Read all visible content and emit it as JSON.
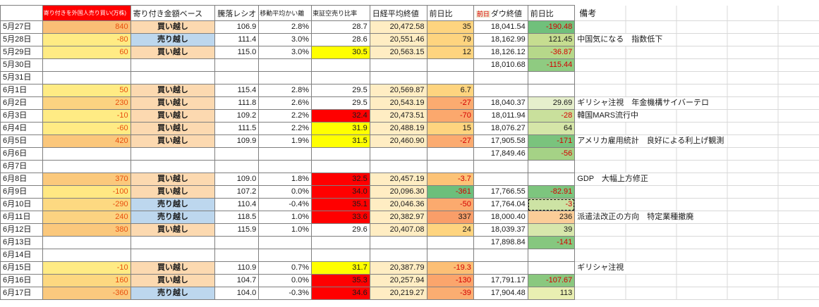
{
  "colors": {
    "header-flow-bg": "#ff0000",
    "header-flow-text": "#ffffff",
    "buy-bg": "#fcd9b0",
    "sell-bg": "#bdd7ee",
    "nikkei-close-bg": "#ffedc3",
    "flow-text": "#e8500f",
    "negative-text": "#d40000",
    "prev-label-text": "#e00000",
    "prev-label-bg": "#efe9d2",
    "border": "#7f7f7f",
    "gridline": "#d8d8d8",
    "highlight-yellow": "#ffff00",
    "highlight-red": "#ff0000"
  },
  "headers": {
    "flow": "寄り付きを外国人売り買い(万株)",
    "basis": "寄り付き金額ベース",
    "ratio": "騰落レシオ",
    "ma_dev": "移動平均かい離",
    "short_ratio": "東証空売り比率",
    "nikkei_close": "日経平均終値",
    "nikkei_diff": "前日比",
    "prev_label": "前日",
    "dow_close": "ダウ終値",
    "dow_diff": "前日比",
    "remark": "備考"
  },
  "rows": [
    {
      "date": "5月27日",
      "flow": "840",
      "flow_bg": "#fabf76",
      "basis": "買い越し",
      "ratio": "106.9",
      "ma_dev": "2.8%",
      "short": "28.7",
      "short_bg": "",
      "nikkei": "20,472.58",
      "ndiff": "35",
      "ndiff_bg": "#fed47f",
      "dow": "18,041.54",
      "ddiff": "-190.48",
      "ddiff_bg": "#70c07b",
      "remark": "",
      "selected": ""
    },
    {
      "date": "5月28日",
      "flow": "-80",
      "flow_bg": "#ffeb84",
      "basis": "売り越し",
      "ratio": "111.4",
      "ma_dev": "3.0%",
      "short": "28.6",
      "short_bg": "",
      "nikkei": "20,551.46",
      "ndiff": "79",
      "ndiff_bg": "#fed47f",
      "dow": "18,162.99",
      "ddiff": "121.45",
      "ddiff_bg": "#c6dd90",
      "remark": "中国気になる　指数低下",
      "selected": ""
    },
    {
      "date": "5月29日",
      "flow": "60",
      "flow_bg": "#ffeb84",
      "basis": "買い越し",
      "ratio": "115.0",
      "ma_dev": "3.0%",
      "short": "30.5",
      "short_bg": "#ffff00",
      "nikkei": "20,563.15",
      "ndiff": "12",
      "ndiff_bg": "#fed47f",
      "dow": "18,126.12",
      "ddiff": "-36.87",
      "ddiff_bg": "#b6d88a",
      "remark": "",
      "selected": ""
    },
    {
      "date": "5月30日",
      "flow": "",
      "flow_bg": "",
      "basis": "",
      "ratio": "",
      "ma_dev": "",
      "short": "",
      "short_bg": "",
      "nikkei": "",
      "ndiff": "",
      "ndiff_bg": "",
      "dow": "18,010.68",
      "ddiff": "-115.44",
      "ddiff_bg": "#8fcb81",
      "remark": "",
      "selected": ""
    },
    {
      "date": "5月31日",
      "flow": "",
      "flow_bg": "",
      "basis": "",
      "ratio": "",
      "ma_dev": "",
      "short": "",
      "short_bg": "",
      "nikkei": "",
      "ndiff": "",
      "ndiff_bg": "",
      "dow": "",
      "ddiff": "",
      "ddiff_bg": "",
      "remark": "",
      "selected": ""
    },
    {
      "date": "6月1日",
      "flow": "50",
      "flow_bg": "#ffeb84",
      "basis": "買い越し",
      "ratio": "115.4",
      "ma_dev": "2.8%",
      "short": "29.5",
      "short_bg": "",
      "nikkei": "20,569.87",
      "ndiff": "6.7",
      "ndiff_bg": "#fed47f",
      "dow": "",
      "ddiff": "",
      "ddiff_bg": "",
      "remark": "",
      "selected": ""
    },
    {
      "date": "6月2日",
      "flow": "230",
      "flow_bg": "#fcd381",
      "basis": "買い越し",
      "ratio": "111.8",
      "ma_dev": "2.6%",
      "short": "29.5",
      "short_bg": "",
      "nikkei": "20,543.19",
      "ndiff": "-27",
      "ndiff_bg": "#fbab70",
      "dow": "18,040.37",
      "ddiff": "29.69",
      "ddiff_bg": "#e6efcc",
      "remark": "ギリシャ注視　年金機構サイバーテロ",
      "selected": ""
    },
    {
      "date": "6月3日",
      "flow": "-10",
      "flow_bg": "#ffeb84",
      "basis": "買い越し",
      "ratio": "109.2",
      "ma_dev": "2.2%",
      "short": "32.4",
      "short_bg": "#ff0000",
      "nikkei": "20,473.51",
      "ndiff": "-70",
      "ndiff_bg": "#fba86d",
      "dow": "18,011.94",
      "ddiff": "-28",
      "ddiff_bg": "#c9e09c",
      "remark": "韓国MARS流行中",
      "selected": ""
    },
    {
      "date": "6月4日",
      "flow": "-60",
      "flow_bg": "#ffeb84",
      "basis": "買い越し",
      "ratio": "111.5",
      "ma_dev": "2.2%",
      "short": "31.9",
      "short_bg": "#ffff00",
      "nikkei": "20,488.19",
      "ndiff": "15",
      "ndiff_bg": "#fed47f",
      "dow": "18,076.27",
      "ddiff": "64",
      "ddiff_bg": "#d5e6a8",
      "remark": "",
      "selected": ""
    },
    {
      "date": "6月5日",
      "flow": "420",
      "flow_bg": "#fbc77b",
      "basis": "買い越し",
      "ratio": "109.9",
      "ma_dev": "1.9%",
      "short": "31.5",
      "short_bg": "#ffff00",
      "nikkei": "20,460.90",
      "ndiff": "-27",
      "ndiff_bg": "#fbab70",
      "dow": "17,905.58",
      "ddiff": "-171",
      "ddiff_bg": "#7ac37d",
      "remark": "アメリカ雇用統計　良好による利上げ観測",
      "selected": ""
    },
    {
      "date": "6月6日",
      "flow": "",
      "flow_bg": "",
      "basis": "",
      "ratio": "",
      "ma_dev": "",
      "short": "",
      "short_bg": "",
      "nikkei": "",
      "ndiff": "",
      "ndiff_bg": "",
      "dow": "17,849.46",
      "ddiff": "-56",
      "ddiff_bg": "#a5d286",
      "remark": "",
      "selected": ""
    },
    {
      "date": "6月7日",
      "flow": "",
      "flow_bg": "",
      "basis": "",
      "ratio": "",
      "ma_dev": "",
      "short": "",
      "short_bg": "",
      "nikkei": "",
      "ndiff": "",
      "ndiff_bg": "",
      "dow": "",
      "ddiff": "",
      "ddiff_bg": "",
      "remark": "",
      "selected": ""
    },
    {
      "date": "6月8日",
      "flow": "370",
      "flow_bg": "#fbc97c",
      "basis": "買い越し",
      "ratio": "109.0",
      "ma_dev": "1.8%",
      "short": "32.5",
      "short_bg": "#ff0000",
      "nikkei": "20,457.19",
      "ndiff": "-3.7",
      "ndiff_bg": "#fcc377",
      "dow": "",
      "ddiff": "",
      "ddiff_bg": "",
      "remark": "GDP　大幅上方修正",
      "selected": ""
    },
    {
      "date": "6月9日",
      "flow": "-100",
      "flow_bg": "#ffe883",
      "basis": "買い越し",
      "ratio": "107.2",
      "ma_dev": "0.0%",
      "short": "34.0",
      "short_bg": "#ff0000",
      "nikkei": "20,096.30",
      "ndiff": "-361",
      "ndiff_bg": "#6cbf7b",
      "dow": "17,766.55",
      "ddiff": "-82.91",
      "ddiff_bg": "#7dc57e",
      "remark": "",
      "selected": ""
    },
    {
      "date": "6月10日",
      "flow": "-290",
      "flow_bg": "#fdd981",
      "basis": "売り越し",
      "ratio": "110.4",
      "ma_dev": "-0.4%",
      "short": "35.1",
      "short_bg": "#ff0000",
      "nikkei": "20,046.36",
      "ndiff": "-50",
      "ndiff_bg": "#fbaa6e",
      "dow": "17,764.04",
      "ddiff": "-3",
      "ddiff_bg": "#cde3a4",
      "remark": "",
      "selected": "ddiff"
    },
    {
      "date": "6月11日",
      "flow": "240",
      "flow_bg": "#fcd381",
      "basis": "売り越し",
      "ratio": "118.5",
      "ma_dev": "1.0%",
      "short": "33.6",
      "short_bg": "#ff0000",
      "nikkei": "20,382.97",
      "ndiff": "337",
      "ndiff_bg": "#f99e69",
      "dow": "18,000.40",
      "ddiff": "236",
      "ddiff_bg": "#fbcd98",
      "remark": "派遣法改正の方向　特定業種撤廃",
      "selected": ""
    },
    {
      "date": "6月12日",
      "flow": "380",
      "flow_bg": "#fbc87c",
      "basis": "買い越し",
      "ratio": "115.9",
      "ma_dev": "1.0%",
      "short": "29.6",
      "short_bg": "",
      "nikkei": "20,407.08",
      "ndiff": "24",
      "ndiff_bg": "#fed47f",
      "dow": "18,039.37",
      "ddiff": "39",
      "ddiff_bg": "#d7e7ac",
      "remark": "",
      "selected": ""
    },
    {
      "date": "6月13日",
      "flow": "",
      "flow_bg": "",
      "basis": "",
      "ratio": "",
      "ma_dev": "",
      "short": "",
      "short_bg": "",
      "nikkei": "",
      "ndiff": "",
      "ndiff_bg": "",
      "dow": "17,898.84",
      "ddiff": "-141",
      "ddiff_bg": "#86c77f",
      "remark": "",
      "selected": ""
    },
    {
      "date": "6月14日",
      "flow": "",
      "flow_bg": "",
      "basis": "",
      "ratio": "",
      "ma_dev": "",
      "short": "",
      "short_bg": "",
      "nikkei": "",
      "ndiff": "",
      "ndiff_bg": "",
      "dow": "",
      "ddiff": "",
      "ddiff_bg": "",
      "remark": "",
      "selected": ""
    },
    {
      "date": "6月15日",
      "flow": "-10",
      "flow_bg": "#ffeb84",
      "basis": "買い越し",
      "ratio": "110.9",
      "ma_dev": "0.7%",
      "short": "31.7",
      "short_bg": "#ffff00",
      "nikkei": "20,387.79",
      "ndiff": "-19.3",
      "ndiff_bg": "#fcbf75",
      "dow": "",
      "ddiff": "",
      "ddiff_bg": "",
      "remark": "ギリシャ注視",
      "selected": ""
    },
    {
      "date": "6月16日",
      "flow": "160",
      "flow_bg": "#fdd880",
      "basis": "買い越し",
      "ratio": "104.7",
      "ma_dev": "0.0%",
      "short": "35.3",
      "short_bg": "#ff0000",
      "nikkei": "20,257.94",
      "ndiff": "-130",
      "ndiff_bg": "#fba56c",
      "dow": "17,791.17",
      "ddiff": "-107.67",
      "ddiff_bg": "#8ac87f",
      "remark": "",
      "selected": ""
    },
    {
      "date": "6月17日",
      "flow": "-360",
      "flow_bg": "#fbc97e",
      "basis": "売り越し",
      "ratio": "104.0",
      "ma_dev": "-0.3%",
      "short": "34.6",
      "short_bg": "#ff0000",
      "nikkei": "20,219.27",
      "ndiff": "-39",
      "ndiff_bg": "#fbad71",
      "dow": "17,904.48",
      "ddiff": "113",
      "ddiff_bg": "#e9efb2",
      "remark": "",
      "selected": ""
    }
  ]
}
